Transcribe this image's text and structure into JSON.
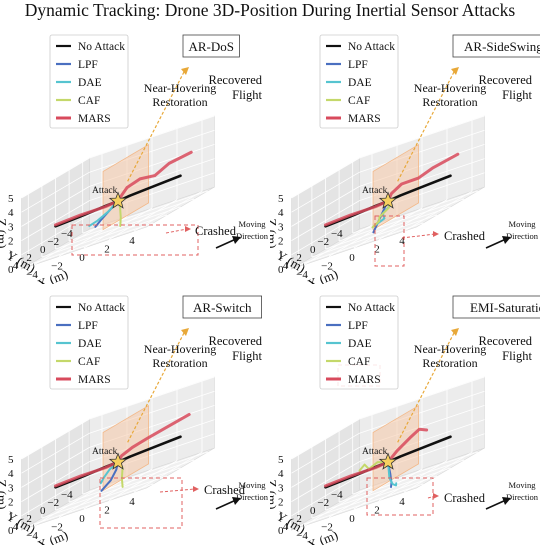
{
  "title": "Dynamic Tracking: Drone 3D-Position During Inertial Sensor Attacks",
  "colors": {
    "No Attack": "#111111",
    "LPF": "#4a6fc0",
    "DAE": "#56c4d0",
    "CAF": "#c4d86a",
    "MARS": "#d84a5c",
    "annotation": "#e06060",
    "recovered_arrow": "#e8a838",
    "plane": "#f6c9a8"
  },
  "legend": [
    "No Attack",
    "LPF",
    "DAE",
    "CAF",
    "MARS"
  ],
  "annotations": {
    "attack": "Attack",
    "near_hover": "Near-Hovering",
    "restoration": "Restoration",
    "recovered_1": "Recovered",
    "recovered_2": "Flight",
    "crashed": "Crashed",
    "moving_1": "Moving",
    "moving_2": "Direction"
  },
  "axes": {
    "xlabel": "X (m)",
    "ylabel": "Y (m)",
    "zlabel": "Z (m)",
    "x_ticks": [
      "−4",
      "−2",
      "0",
      "2",
      "4"
    ],
    "y_ticks": [
      "−4",
      "−2",
      "0",
      "2",
      "4"
    ],
    "z_ticks": [
      "0",
      "1",
      "2",
      "3",
      "4",
      "5"
    ]
  },
  "chart_data": [
    {
      "type": "line3d",
      "title": "AR-DoS",
      "xlim": [
        -5,
        5
      ],
      "ylim": [
        -5,
        5
      ],
      "zlim": [
        0,
        5
      ],
      "series": [
        {
          "name": "No Attack",
          "points": [
            [
              -5,
              0,
              1.6
            ],
            [
              -3,
              0,
              1.7
            ],
            [
              -1,
              0,
              1.85
            ],
            [
              0,
              0,
              1.9
            ],
            [
              1,
              0,
              2.0
            ],
            [
              3,
              0,
              2.1
            ],
            [
              5,
              0,
              2.2
            ]
          ]
        },
        {
          "name": "LPF",
          "points": [
            [
              0,
              0,
              1.9
            ],
            [
              -0.3,
              0.4,
              1.6
            ],
            [
              -0.8,
              1.0,
              1.1
            ],
            [
              -1.0,
              1.5,
              0.8
            ]
          ]
        },
        {
          "name": "DAE",
          "points": [
            [
              0,
              0,
              1.9
            ],
            [
              -0.5,
              -0.5,
              1.7
            ],
            [
              -1.6,
              -1.5,
              1.2
            ],
            [
              -3.0,
              -2.5,
              0.7
            ],
            [
              -4.2,
              -3.5,
              0.4
            ]
          ]
        },
        {
          "name": "CAF",
          "points": [
            [
              0,
              0,
              1.9
            ],
            [
              0.6,
              0.8,
              1.5
            ],
            [
              1.2,
              1.8,
              0.9
            ],
            [
              1.6,
              2.6,
              0.4
            ]
          ]
        },
        {
          "name": "MARS",
          "points": [
            [
              -5,
              0,
              1.7
            ],
            [
              -3,
              0,
              1.8
            ],
            [
              -1,
              0,
              1.8
            ],
            [
              0,
              0,
              1.9
            ],
            [
              0.5,
              0.3,
              2.3
            ],
            [
              1.0,
              0.5,
              2.7
            ],
            [
              1.6,
              -0.3,
              2.9
            ],
            [
              2.4,
              -1.0,
              2.7
            ],
            [
              3.0,
              -2.0,
              3.1
            ],
            [
              4.5,
              -2.5,
              3.3
            ]
          ]
        }
      ]
    },
    {
      "type": "line3d",
      "title": "AR-SideSwing",
      "xlim": [
        -5,
        5
      ],
      "ylim": [
        -5,
        5
      ],
      "zlim": [
        0,
        5
      ],
      "series": [
        {
          "name": "No Attack",
          "points": [
            [
              -5,
              0,
              1.6
            ],
            [
              -3,
              0,
              1.7
            ],
            [
              -1,
              0,
              1.85
            ],
            [
              0,
              0,
              1.9
            ],
            [
              1,
              0,
              2.0
            ],
            [
              3,
              0,
              2.1
            ],
            [
              5,
              0,
              2.2
            ]
          ]
        },
        {
          "name": "LPF",
          "points": [
            [
              0,
              0,
              1.9
            ],
            [
              0.3,
              1.2,
              1.5
            ],
            [
              0.6,
              2.5,
              1.0
            ],
            [
              0.9,
              3.8,
              0.5
            ]
          ]
        },
        {
          "name": "DAE",
          "points": [
            [
              0,
              0,
              1.9
            ],
            [
              0.5,
              0.6,
              1.6
            ],
            [
              0.3,
              1.3,
              1.3
            ],
            [
              0.8,
              2.0,
              1.0
            ],
            [
              0.4,
              2.7,
              0.8
            ]
          ]
        },
        {
          "name": "CAF",
          "points": [
            [
              0,
              0,
              1.9
            ],
            [
              0.5,
              0.8,
              1.5
            ],
            [
              0.3,
              1.8,
              1.2
            ],
            [
              0.7,
              2.6,
              1.0
            ],
            [
              0.5,
              3.2,
              0.8
            ]
          ]
        },
        {
          "name": "MARS",
          "points": [
            [
              -5,
              0,
              1.7
            ],
            [
              -3,
              0,
              1.8
            ],
            [
              -1,
              0,
              1.8
            ],
            [
              0,
              0,
              1.9
            ],
            [
              0.5,
              0.4,
              2.4
            ],
            [
              1.2,
              0.2,
              2.8
            ],
            [
              2.0,
              -0.8,
              2.7
            ],
            [
              2.8,
              -1.5,
              3.0
            ],
            [
              4.5,
              -2.0,
              3.3
            ]
          ]
        }
      ]
    },
    {
      "type": "line3d",
      "title": "AR-Switch",
      "xlim": [
        -5,
        5
      ],
      "ylim": [
        -5,
        5
      ],
      "zlim": [
        0,
        5
      ],
      "series": [
        {
          "name": "No Attack",
          "points": [
            [
              -5,
              0,
              1.6
            ],
            [
              -3,
              0,
              1.7
            ],
            [
              -1,
              0,
              1.85
            ],
            [
              0,
              0,
              1.9
            ],
            [
              1,
              0,
              2.0
            ],
            [
              3,
              0,
              2.1
            ],
            [
              5,
              0,
              2.2
            ]
          ]
        },
        {
          "name": "LPF",
          "points": [
            [
              0,
              0,
              1.9
            ],
            [
              0.3,
              0.8,
              1.5
            ],
            [
              0.4,
              1.8,
              1.0
            ],
            [
              0.2,
              2.8,
              0.6
            ]
          ]
        },
        {
          "name": "DAE",
          "points": [
            [
              0,
              0,
              1.9
            ],
            [
              -0.6,
              0.1,
              1.6
            ],
            [
              -0.9,
              0.4,
              1.2
            ],
            [
              -1.0,
              0.7,
              0.9
            ]
          ]
        },
        {
          "name": "CAF",
          "points": [
            [
              0,
              0,
              1.9
            ],
            [
              0.8,
              0.8,
              1.5
            ],
            [
              1.4,
              2.0,
              0.9
            ],
            [
              2.0,
              3.0,
              0.4
            ]
          ]
        },
        {
          "name": "MARS",
          "points": [
            [
              -5,
              0,
              1.7
            ],
            [
              -3,
              0,
              1.8
            ],
            [
              -1,
              0,
              1.8
            ],
            [
              0,
              0,
              1.9
            ],
            [
              0.5,
              0.4,
              2.3
            ],
            [
              1.2,
              0.1,
              2.6
            ],
            [
              2.0,
              -0.8,
              2.8
            ],
            [
              3.0,
              -1.5,
              3.0
            ],
            [
              4.5,
              -2.2,
              3.3
            ]
          ]
        }
      ]
    },
    {
      "type": "line3d",
      "title": "EMI-Saturation",
      "xlim": [
        -5,
        5
      ],
      "ylim": [
        -5,
        5
      ],
      "zlim": [
        0,
        5
      ],
      "series": [
        {
          "name": "No Attack",
          "points": [
            [
              -5,
              0,
              1.6
            ],
            [
              -3,
              0,
              1.7
            ],
            [
              -1,
              0,
              1.85
            ],
            [
              0,
              0,
              1.9
            ],
            [
              1,
              0,
              2.0
            ],
            [
              3,
              0,
              2.1
            ],
            [
              5,
              0,
              2.2
            ]
          ]
        },
        {
          "name": "LPF",
          "points": [
            [
              0,
              0,
              1.9
            ],
            [
              1.0,
              1.5,
              1.2
            ],
            [
              1.8,
              2.8,
              0.7
            ],
            [
              2.2,
              3.6,
              0.5
            ]
          ]
        },
        {
          "name": "DAE",
          "points": [
            [
              0,
              0,
              1.9
            ],
            [
              1.2,
              2.0,
              1.0
            ],
            [
              2.0,
              3.0,
              0.6
            ],
            [
              2.6,
              3.6,
              0.5
            ],
            [
              2.4,
              3.2,
              0.6
            ]
          ]
        },
        {
          "name": "CAF",
          "points": [
            [
              0,
              0,
              1.9
            ],
            [
              -1.0,
              -0.3,
              2.1
            ],
            [
              -1.8,
              -0.5,
              1.8
            ],
            [
              -2.2,
              -0.6,
              2.2
            ],
            [
              -2.6,
              -0.6,
              1.9
            ]
          ]
        },
        {
          "name": "MARS",
          "points": [
            [
              -5,
              0,
              1.7
            ],
            [
              -3,
              0,
              1.8
            ],
            [
              -1,
              0,
              1.8
            ],
            [
              0,
              0,
              1.9
            ],
            [
              0.4,
              -0.6,
              2.4
            ],
            [
              0.9,
              -1.6,
              2.9
            ],
            [
              1.3,
              -2.2,
              3.2
            ],
            [
              2.0,
              -2.0,
              3.0
            ]
          ]
        }
      ]
    }
  ]
}
